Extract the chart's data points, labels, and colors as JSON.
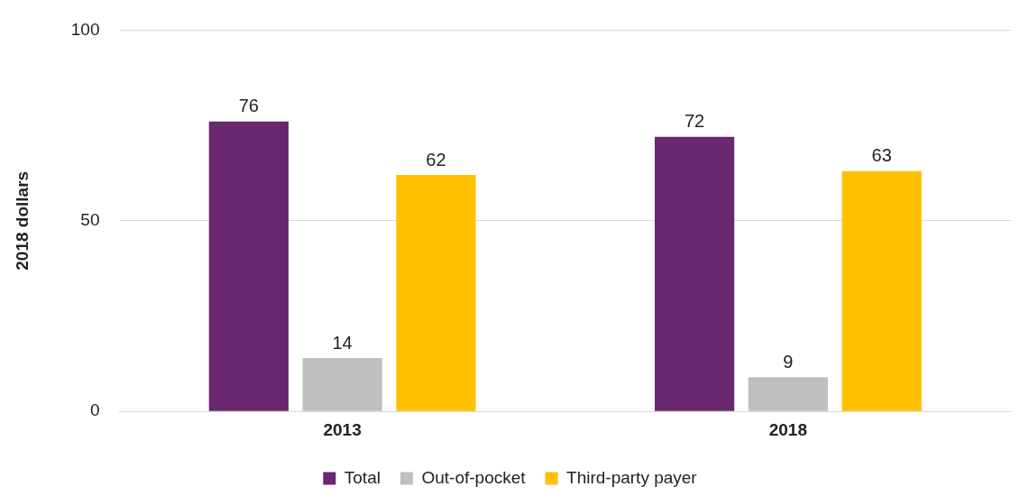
{
  "chart_data": {
    "type": "bar",
    "ylabel": "2018 dollars",
    "categories": [
      "2013",
      "2018"
    ],
    "series": [
      {
        "name": "Total",
        "color": "#68276f",
        "values": [
          76,
          72
        ]
      },
      {
        "name": "Out-of-pocket",
        "color": "#bfbfbf",
        "values": [
          14,
          9
        ]
      },
      {
        "name": "Third-party payer",
        "color": "#ffc000",
        "values": [
          62,
          63
        ]
      }
    ],
    "ylim": [
      0,
      100
    ],
    "yticks": [
      0,
      50,
      100
    ],
    "grid": "y",
    "legend": "bottom",
    "data_labels": true
  }
}
